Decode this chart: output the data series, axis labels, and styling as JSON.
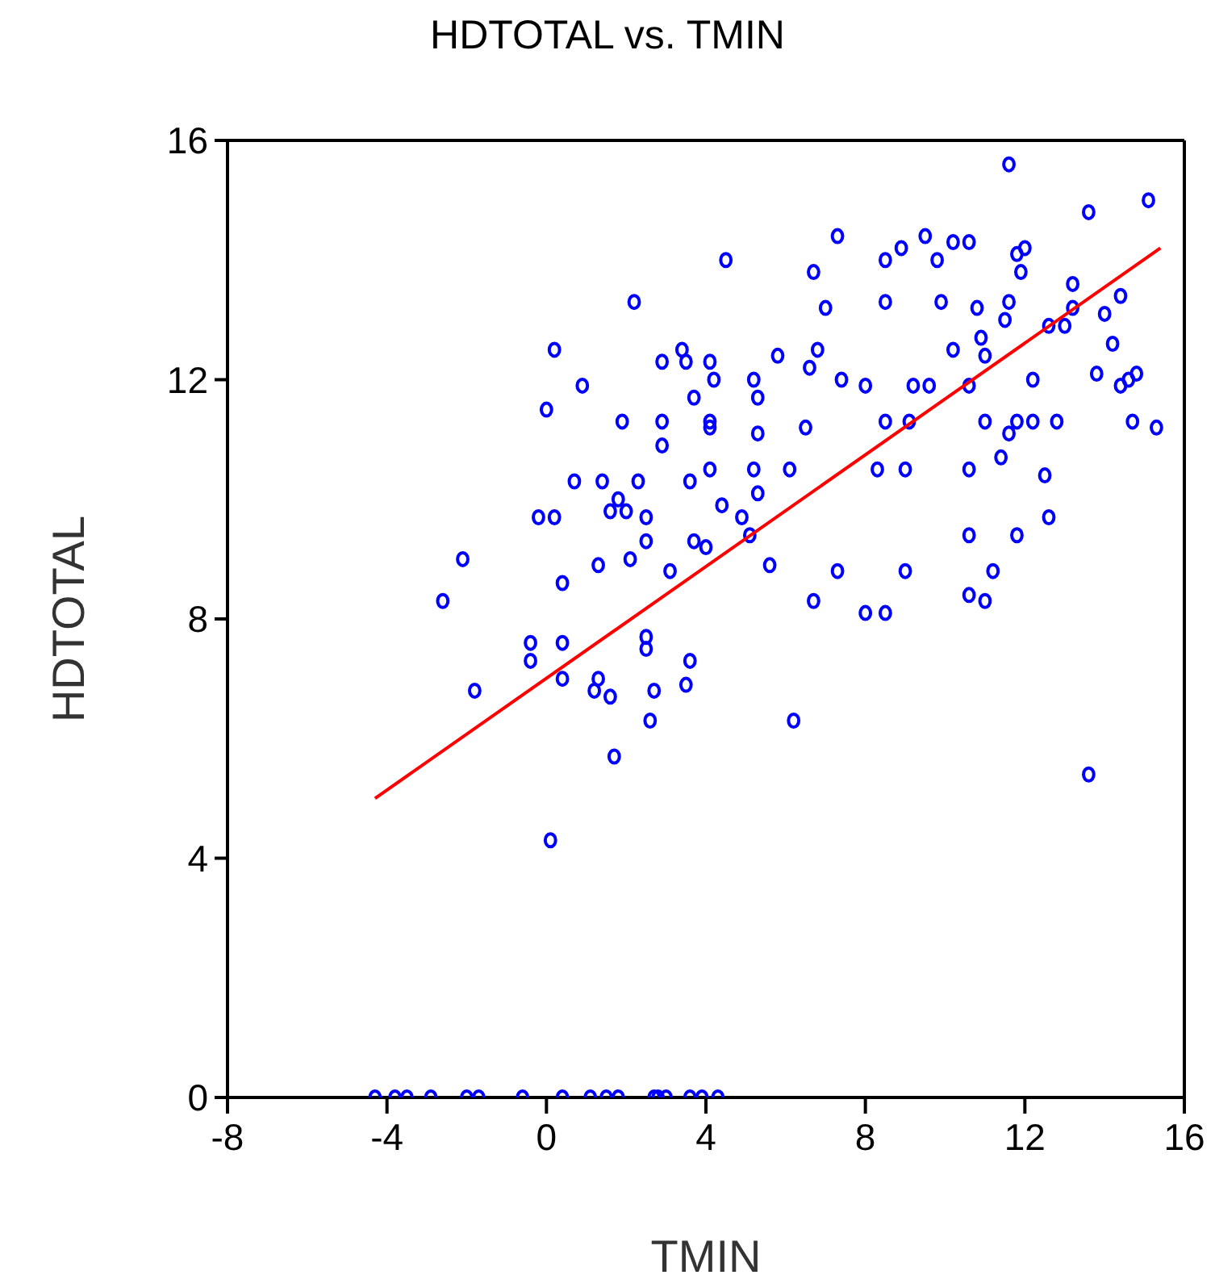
{
  "chart_data": {
    "type": "scatter",
    "title": "HDTOTAL vs. TMIN",
    "xlabel": "TMIN",
    "ylabel": "HDTOTAL",
    "xlim": [
      -8,
      16
    ],
    "xticks": [
      -8,
      -4,
      0,
      4,
      8,
      12,
      16
    ],
    "ylim": [
      0,
      16
    ],
    "yticks": [
      0,
      4,
      8,
      12,
      16
    ],
    "grid": false,
    "series": [
      {
        "type": "scatter",
        "marker": "circle",
        "color": "#0000ff",
        "x": [
          11.6,
          15.1,
          13.6,
          7.3,
          9.5,
          4.5,
          8.9,
          8.5,
          10.2,
          10.6,
          11.8,
          12.0,
          9.8,
          6.7,
          11.9,
          13.2,
          14.4,
          14.0,
          2.2,
          7.0,
          8.5,
          9.9,
          11.6,
          11.5,
          13.2,
          13.0,
          10.8,
          12.6,
          3.4,
          0.2,
          3.5,
          2.9,
          4.1,
          5.8,
          6.8,
          10.2,
          14.2,
          10.9,
          11.0,
          4.2,
          5.2,
          6.6,
          7.4,
          9.6,
          12.2,
          13.8,
          14.6,
          14.8,
          14.4,
          0.9,
          3.7,
          5.3,
          8.0,
          9.2,
          10.6,
          1.9,
          2.9,
          4.1,
          4.1,
          11.8,
          12.2,
          12.8,
          11.0,
          14.7,
          15.3,
          11.6,
          6.5,
          8.5,
          9.1,
          0.0,
          5.3,
          2.9,
          9.0,
          10.6,
          11.4,
          12.5,
          4.1,
          5.2,
          6.1,
          8.3,
          5.3,
          0.7,
          1.4,
          2.3,
          3.6,
          4.4,
          4.9,
          1.8,
          1.6,
          -0.2,
          0.2,
          2.0,
          2.5,
          5.1,
          3.7,
          4.0,
          2.5,
          2.1,
          1.3,
          -2.1,
          3.1,
          5.6,
          7.3,
          9.0,
          10.6,
          11.8,
          11.2,
          12.6,
          -2.6,
          0.4,
          6.7,
          8.0,
          8.5,
          10.6,
          11.0,
          -0.4,
          -0.4,
          0.4,
          1.3,
          2.5,
          2.5,
          0.4,
          3.6,
          3.5,
          -1.8,
          1.2,
          1.6,
          2.7,
          2.6,
          1.7,
          6.2,
          0.1,
          13.6,
          -4.3,
          -3.8,
          -3.5,
          -2.9,
          -2.0,
          -1.7,
          -0.6,
          0.4,
          1.1,
          1.5,
          1.8,
          2.7,
          2.8,
          3.0,
          3.6,
          3.9,
          4.3
        ],
        "values": [
          15.6,
          15.0,
          14.8,
          14.4,
          14.4,
          14.0,
          14.2,
          14.0,
          14.3,
          14.3,
          14.1,
          14.2,
          14.0,
          13.8,
          13.8,
          13.6,
          13.4,
          13.1,
          13.3,
          13.2,
          13.3,
          13.3,
          13.3,
          13.0,
          13.2,
          12.9,
          13.2,
          12.9,
          12.5,
          12.5,
          12.3,
          12.3,
          12.3,
          12.4,
          12.5,
          12.5,
          12.6,
          12.7,
          12.4,
          12.0,
          12.0,
          12.2,
          12.0,
          11.9,
          12.0,
          12.1,
          12.0,
          12.1,
          11.9,
          11.9,
          11.7,
          11.7,
          11.9,
          11.9,
          11.9,
          11.3,
          11.3,
          11.3,
          11.2,
          11.3,
          11.3,
          11.3,
          11.3,
          11.3,
          11.2,
          11.1,
          11.2,
          11.3,
          11.3,
          11.5,
          11.1,
          10.9,
          10.5,
          10.5,
          10.7,
          10.4,
          10.5,
          10.5,
          10.5,
          10.5,
          10.1,
          10.3,
          10.3,
          10.3,
          10.3,
          9.9,
          9.7,
          10.0,
          9.8,
          9.7,
          9.7,
          9.8,
          9.7,
          9.4,
          9.3,
          9.2,
          9.3,
          9.0,
          8.9,
          9.0,
          8.8,
          8.9,
          8.8,
          8.8,
          9.4,
          9.4,
          8.8,
          9.7,
          8.3,
          8.6,
          8.3,
          8.1,
          8.1,
          8.4,
          8.3,
          7.6,
          7.3,
          7.6,
          7.0,
          7.7,
          7.5,
          7.0,
          7.3,
          6.9,
          6.8,
          6.8,
          6.7,
          6.8,
          6.3,
          5.7,
          6.3,
          4.3,
          5.4,
          0,
          0,
          0,
          0,
          0,
          0,
          0,
          0,
          0,
          0,
          0,
          0,
          0,
          0,
          0,
          0,
          0
        ]
      },
      {
        "type": "line",
        "marker": "none",
        "color": "#ff0000",
        "x": [
          -4.3,
          15.4
        ],
        "values": [
          5.0,
          14.2
        ]
      }
    ]
  }
}
